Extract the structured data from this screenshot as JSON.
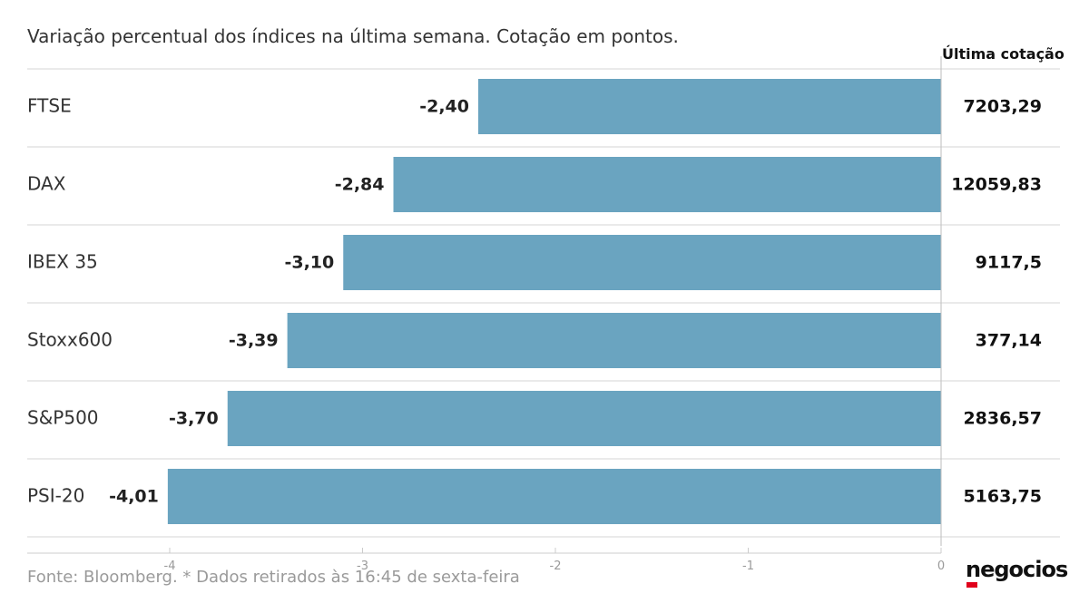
{
  "subtitle": "Variação percentual dos índices na última semana. Cotação em pontos.",
  "last_quote_header": "Última cotação",
  "source": "Fonte: Bloomberg.  * Dados retirados às 16:45 de sexta-feira",
  "logo": "negocios",
  "colors": {
    "bar": "#6aa4c0",
    "brand_red": "#e0001b"
  },
  "chart_data": {
    "type": "bar",
    "orientation": "horizontal",
    "title": "",
    "xlabel": "",
    "ylabel": "",
    "categories": [
      "FTSE",
      "DAX",
      "IBEX 35",
      "Stoxx600",
      "S&P500",
      "PSI-20"
    ],
    "values": [
      -2.4,
      -2.84,
      -3.1,
      -3.39,
      -3.7,
      -4.01
    ],
    "value_labels": [
      "-2,40",
      "-2,84",
      "-3,10",
      "-3,39",
      "-3,70",
      "-4,01"
    ],
    "last_quotes": [
      "7203,29",
      "12059,83",
      "9117,5",
      "377,14",
      "2836,57",
      "5163,75"
    ],
    "xlim": [
      -4.8,
      0
    ],
    "xticks": [
      -4,
      -3,
      -2,
      -1,
      0
    ],
    "xtick_labels": [
      "-4",
      "-3",
      "-2",
      "-1",
      "0"
    ],
    "grid": false
  }
}
